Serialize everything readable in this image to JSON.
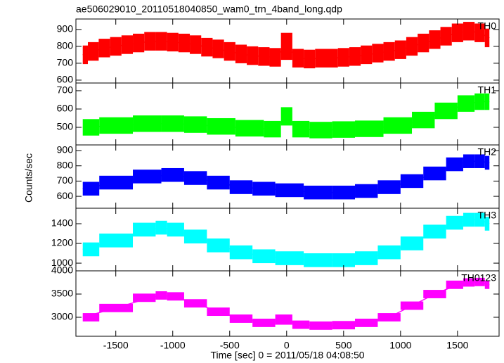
{
  "title": "ae506029010_20110518040850_wam0_trn_4band_long.qdp",
  "ylabel": "Counts/sec",
  "xlabel": "Time [sec] 0 = 2011/05/18 04:08:50",
  "chart_data": [
    {
      "type": "line",
      "xlim": [
        -1850,
        1865
      ],
      "ylim": [
        583,
        962
      ],
      "xticks": [
        -1500,
        -1000,
        -500,
        0,
        500,
        1000,
        1500
      ],
      "yticks": [
        600,
        700,
        800,
        900
      ],
      "x": [
        -1790,
        -1700,
        -1600,
        -1500,
        -1400,
        -1300,
        -1200,
        -1100,
        -1000,
        -900,
        -800,
        -700,
        -600,
        -500,
        -400,
        -300,
        -200,
        -100,
        0,
        100,
        200,
        300,
        400,
        500,
        600,
        700,
        800,
        900,
        1000,
        1100,
        1200,
        1300,
        1400,
        1500,
        1600,
        1700,
        1780
      ],
      "series": [
        {
          "name": "TH0",
          "color": "#ff0000",
          "values": [
            750,
            770,
            790,
            800,
            810,
            820,
            830,
            830,
            825,
            820,
            810,
            795,
            785,
            770,
            755,
            745,
            740,
            735,
            800,
            730,
            725,
            730,
            730,
            735,
            740,
            750,
            760,
            770,
            780,
            800,
            820,
            840,
            860,
            880,
            890,
            880,
            850
          ],
          "errors": [
            55,
            55,
            55,
            55,
            55,
            55,
            55,
            55,
            55,
            55,
            55,
            55,
            55,
            55,
            55,
            55,
            55,
            55,
            80,
            55,
            55,
            55,
            55,
            55,
            55,
            55,
            55,
            55,
            55,
            55,
            55,
            55,
            55,
            55,
            55,
            55,
            55
          ]
        }
      ]
    },
    {
      "type": "line",
      "xlim": [
        -1850,
        1865
      ],
      "ylim": [
        404,
        742
      ],
      "xticks": [
        -1500,
        -1000,
        -500,
        0,
        500,
        1000,
        1500
      ],
      "yticks": [
        500,
        600,
        700
      ],
      "x": [
        -1790,
        -1500,
        -1200,
        -1000,
        -800,
        -600,
        -300,
        -100,
        0,
        100,
        300,
        500,
        700,
        1000,
        1200,
        1400,
        1600,
        1700,
        1780
      ],
      "series": [
        {
          "name": "TH1",
          "color": "#00ff00",
          "values": [
            500,
            510,
            520,
            520,
            515,
            505,
            495,
            490,
            560,
            490,
            485,
            488,
            492,
            510,
            540,
            590,
            630,
            640,
            640
          ],
          "errors": [
            45,
            45,
            45,
            45,
            45,
            45,
            45,
            45,
            50,
            45,
            45,
            45,
            45,
            45,
            45,
            45,
            45,
            45,
            45
          ]
        }
      ]
    },
    {
      "type": "line",
      "xlim": [
        -1850,
        1865
      ],
      "ylim": [
        522,
        937
      ],
      "xticks": [
        -1500,
        -1000,
        -500,
        0,
        500,
        1000,
        1500
      ],
      "yticks": [
        600,
        700,
        800,
        900
      ],
      "x": [
        -1790,
        -1500,
        -1200,
        -1000,
        -800,
        -600,
        -400,
        -200,
        0,
        300,
        500,
        700,
        900,
        1100,
        1300,
        1500,
        1600,
        1700,
        1780
      ],
      "series": [
        {
          "name": "TH2",
          "color": "#0000ff",
          "values": [
            650,
            690,
            730,
            740,
            720,
            690,
            660,
            650,
            640,
            625,
            625,
            635,
            660,
            700,
            750,
            810,
            830,
            830,
            820
          ],
          "errors": [
            45,
            45,
            45,
            45,
            45,
            45,
            45,
            45,
            45,
            45,
            45,
            45,
            45,
            45,
            45,
            45,
            45,
            45,
            45
          ]
        }
      ]
    },
    {
      "type": "line",
      "xlim": [
        -1850,
        1865
      ],
      "ylim": [
        922,
        1557
      ],
      "xticks": [
        -1500,
        -1000,
        -500,
        0,
        500,
        1000,
        1500
      ],
      "yticks": [
        1000,
        1200,
        1400
      ],
      "x": [
        -1790,
        -1500,
        -1200,
        -1100,
        -1000,
        -800,
        -600,
        -400,
        -200,
        0,
        300,
        500,
        700,
        900,
        1100,
        1300,
        1500,
        1600,
        1700,
        1780
      ],
      "series": [
        {
          "name": "TH3",
          "color": "#00ffff",
          "values": [
            1140,
            1230,
            1340,
            1360,
            1340,
            1270,
            1180,
            1110,
            1070,
            1050,
            1030,
            1030,
            1050,
            1110,
            1200,
            1320,
            1410,
            1440,
            1440,
            1400
          ],
          "errors": [
            70,
            70,
            70,
            70,
            70,
            70,
            70,
            70,
            70,
            70,
            70,
            70,
            70,
            70,
            70,
            70,
            70,
            70,
            70,
            70
          ]
        }
      ]
    },
    {
      "type": "line",
      "xlim": [
        -1850,
        1865
      ],
      "ylim": [
        2591,
        4000
      ],
      "xticks": [
        -1500,
        -1000,
        -500,
        0,
        500,
        1000,
        1500
      ],
      "yticks": [
        3000,
        3500,
        4000
      ],
      "x": [
        -1790,
        -1500,
        -1200,
        -1100,
        -1000,
        -800,
        -600,
        -400,
        -200,
        0,
        100,
        300,
        500,
        700,
        900,
        1100,
        1300,
        1500,
        1600,
        1700,
        1780
      ],
      "series": [
        {
          "name": "TH0123",
          "color": "#ff00ff",
          "values": [
            3000,
            3200,
            3420,
            3470,
            3450,
            3300,
            3120,
            2970,
            2880,
            2950,
            2840,
            2820,
            2830,
            2880,
            3000,
            3250,
            3500,
            3700,
            3750,
            3760,
            3700
          ],
          "errors": [
            90,
            90,
            90,
            90,
            90,
            90,
            90,
            90,
            90,
            110,
            90,
            90,
            90,
            90,
            90,
            90,
            90,
            90,
            90,
            90,
            90
          ]
        }
      ]
    }
  ]
}
